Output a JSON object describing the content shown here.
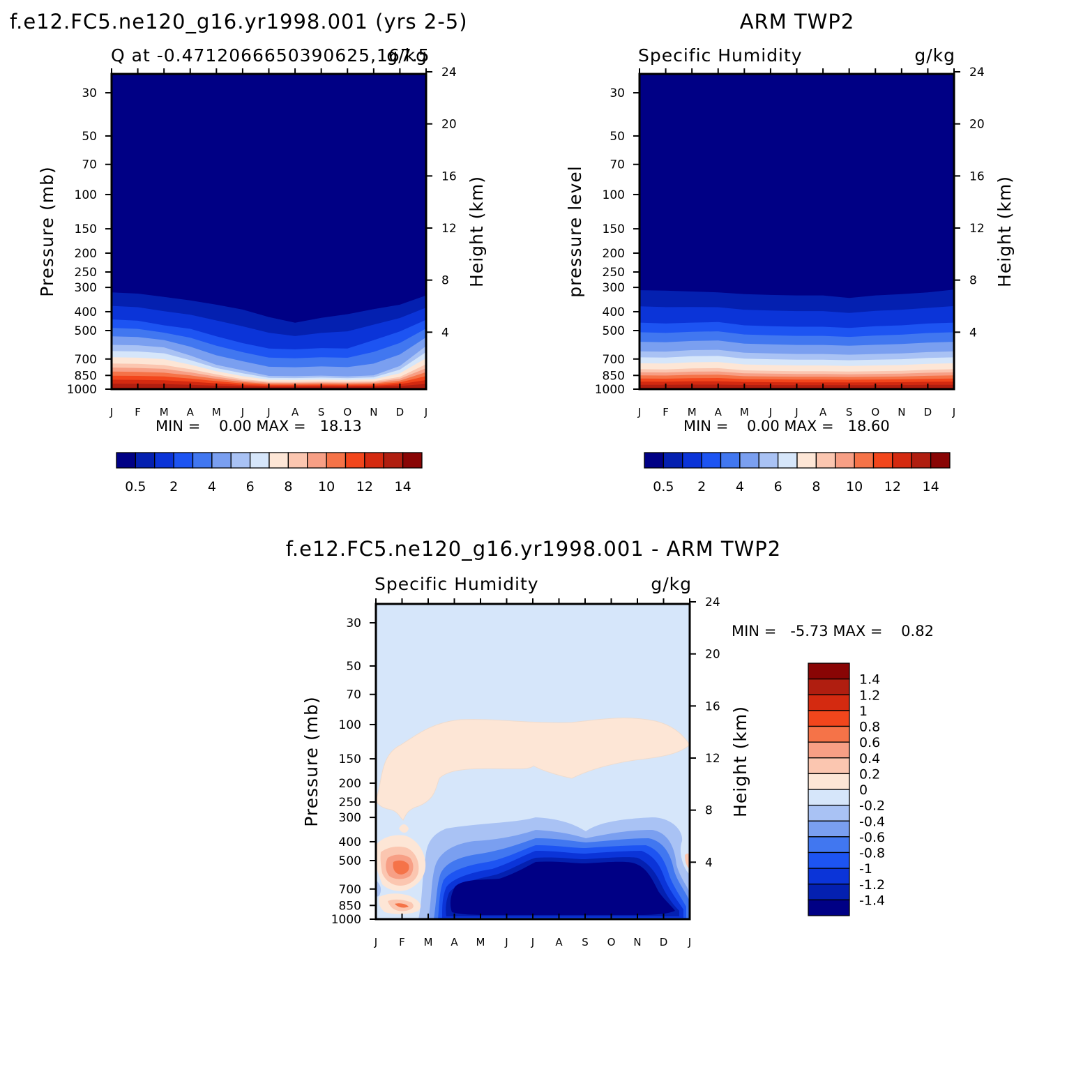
{
  "colors": {
    "q_levels": [
      "#000085",
      "#0420b0",
      "#0b34d8",
      "#1d54f2",
      "#4177f0",
      "#7a9ff0",
      "#a9c2f4",
      "#d6e6fa",
      "#fde6d6",
      "#fbc6b0",
      "#f79f85",
      "#f57348",
      "#f2461c",
      "#d42a10",
      "#b01e10",
      "#890505"
    ],
    "d_levels": [
      "#000085",
      "#0420b0",
      "#0b34d8",
      "#1d54f2",
      "#4177f0",
      "#7a9ff0",
      "#a9c2f4",
      "#d6e6fa",
      "#fde6d6",
      "#fbc6b0",
      "#f79f85",
      "#f57348",
      "#f2461c",
      "#d42a10",
      "#b01e10",
      "#890505"
    ]
  },
  "panels": {
    "model": {
      "title": "f.e12.FC5.ne120_g16.yr1998.001 (yrs 2-5)",
      "left_label": "Q at -0.4712066650390625,167.5",
      "right_label": "g/kg",
      "ylabel": "Pressure (mb)",
      "y2label": "Height (km)",
      "stats": "MIN =    0.00 MAX =   18.13"
    },
    "obs": {
      "title": "ARM TWP2",
      "left_label": "Specific Humidity",
      "right_label": "g/kg",
      "ylabel": "pressure level",
      "y2label": "Height (km)",
      "stats": "MIN =    0.00 MAX =   18.60"
    },
    "diff": {
      "title": "f.e12.FC5.ne120_g16.yr1998.001 - ARM TWP2",
      "left_label": "Specific Humidity",
      "right_label": "g/kg",
      "ylabel": "Pressure (mb)",
      "y2label": "Height (km)",
      "stats": "MIN =   -5.73 MAX =    0.82"
    }
  },
  "chart_data": [
    {
      "type": "heatmap",
      "title": "f.e12.FC5.ne120_g16.yr1998.001 (yrs 2-5)",
      "subtitle": "Q at -0.4712066650390625,167.5",
      "units": "g/kg",
      "ylabel": "Pressure (mb)",
      "y2label": "Height (km)",
      "x_ticks": [
        "J",
        "F",
        "M",
        "A",
        "M",
        "J",
        "J",
        "A",
        "S",
        "O",
        "N",
        "D",
        "J"
      ],
      "y_ticks": [
        30,
        50,
        70,
        100,
        150,
        200,
        250,
        300,
        400,
        500,
        700,
        850,
        1000
      ],
      "y2_ticks": [
        4,
        8,
        12,
        16,
        20,
        24
      ],
      "log_pressure_axis": true,
      "ylim": [
        1000,
        24
      ],
      "colorbar_labels": [
        "0.5",
        "2",
        "4",
        "6",
        "8",
        "10",
        "12",
        "14"
      ],
      "min": 0.0,
      "max": 18.13,
      "moisture_contours_p": {
        "x_month": [
          0,
          1,
          2,
          3,
          4,
          5,
          6,
          7,
          8,
          9,
          10,
          11,
          12
        ],
        "q_0_5": [
          318,
          323,
          336,
          350,
          368,
          390,
          426,
          456,
          430,
          412,
          388,
          368,
          330
        ],
        "q_2": [
          438,
          445,
          470,
          490,
          535,
          580,
          618,
          625,
          615,
          618,
          560,
          505,
          440
        ],
        "q_6": [
          592,
          595,
          610,
          672,
          750,
          800,
          855,
          858,
          852,
          860,
          850,
          760,
          600
        ],
        "q_10": [
          738,
          742,
          752,
          790,
          840,
          888,
          915,
          917,
          913,
          915,
          910,
          865,
          745
        ]
      }
    },
    {
      "type": "heatmap",
      "title": "ARM TWP2",
      "subtitle": "Specific Humidity",
      "units": "g/kg",
      "ylabel": "pressure level",
      "y2label": "Height (km)",
      "x_ticks": [
        "J",
        "F",
        "M",
        "A",
        "M",
        "J",
        "J",
        "A",
        "S",
        "O",
        "N",
        "D",
        "J"
      ],
      "y_ticks": [
        30,
        50,
        70,
        100,
        150,
        200,
        250,
        300,
        400,
        500,
        700,
        850,
        1000
      ],
      "y2_ticks": [
        4,
        8,
        12,
        16,
        20,
        24
      ],
      "log_pressure_axis": true,
      "ylim": [
        1000,
        24
      ],
      "colorbar_labels": [
        "0.5",
        "2",
        "4",
        "6",
        "8",
        "10",
        "12",
        "14"
      ],
      "min": 0.0,
      "max": 18.6,
      "moisture_contours_p": {
        "x_month": [
          0,
          1,
          2,
          3,
          4,
          5,
          6,
          7,
          8,
          9,
          10,
          11,
          12
        ],
        "q_0_5": [
          310,
          312,
          315,
          318,
          325,
          328,
          330,
          330,
          340,
          330,
          325,
          318,
          308
        ],
        "q_2": [
          455,
          460,
          455,
          452,
          470,
          475,
          478,
          478,
          485,
          475,
          470,
          460,
          455
        ],
        "q_6": [
          640,
          642,
          630,
          628,
          650,
          655,
          660,
          660,
          665,
          660,
          655,
          645,
          640
        ],
        "q_10": [
          790,
          792,
          782,
          780,
          800,
          805,
          808,
          808,
          812,
          808,
          805,
          795,
          790
        ]
      }
    },
    {
      "type": "heatmap",
      "title": "f.e12.FC5.ne120_g16.yr1998.001 - ARM TWP2",
      "subtitle": "Specific Humidity",
      "units": "g/kg",
      "ylabel": "Pressure (mb)",
      "y2label": "Height (km)",
      "x_ticks": [
        "J",
        "F",
        "M",
        "A",
        "M",
        "J",
        "J",
        "A",
        "S",
        "O",
        "N",
        "D",
        "J"
      ],
      "y_ticks": [
        30,
        50,
        70,
        100,
        150,
        200,
        250,
        300,
        400,
        500,
        700,
        850,
        1000
      ],
      "y2_ticks": [
        4,
        8,
        12,
        16,
        20,
        24
      ],
      "log_pressure_axis": true,
      "ylim": [
        1000,
        24
      ],
      "colorbar_labels": [
        "1.4",
        "1.2",
        "1",
        "0.8",
        "0.6",
        "0.4",
        "0.2",
        "0",
        "-0.2",
        "-0.4",
        "-0.6",
        "-0.8",
        "-1",
        "-1.2",
        "-1.4"
      ],
      "min": -5.73,
      "max": 0.82
    }
  ]
}
